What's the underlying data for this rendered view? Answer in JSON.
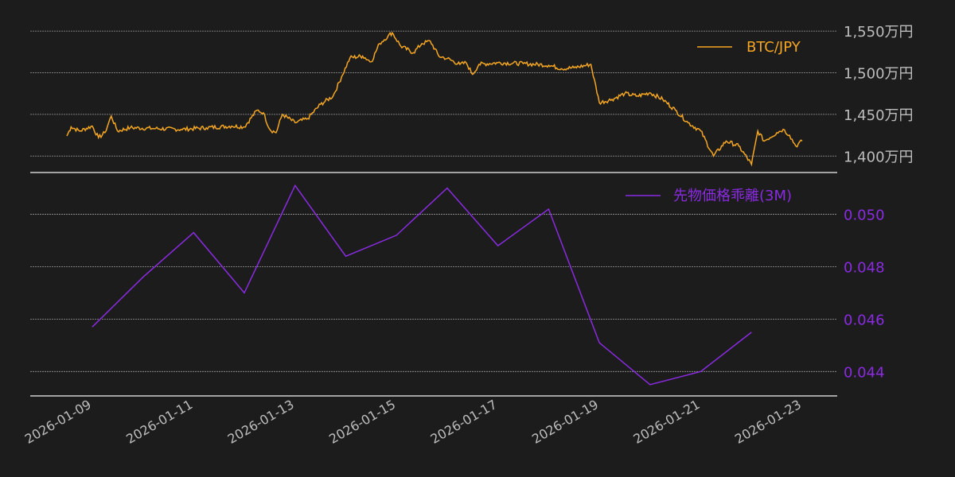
{
  "chart_data": [
    {
      "type": "line",
      "panel": "top",
      "series": [
        {
          "name": "BTC/JPY",
          "color": "#f5a623"
        }
      ],
      "x_start": "2026-01-08T12:00",
      "x_end": "2026-01-23T00:00",
      "keypoints": [
        [
          "2026-01-08T12:00",
          1424
        ],
        [
          "2026-01-08T14:00",
          1435
        ],
        [
          "2026-01-08T18:00",
          1430
        ],
        [
          "2026-01-09T00:00",
          1436
        ],
        [
          "2026-01-09T03:00",
          1422
        ],
        [
          "2026-01-09T06:00",
          1428
        ],
        [
          "2026-01-09T09:00",
          1448
        ],
        [
          "2026-01-09T12:00",
          1430
        ],
        [
          "2026-01-09T18:00",
          1434
        ],
        [
          "2026-01-10T06:00",
          1433
        ],
        [
          "2026-01-10T18:00",
          1432
        ],
        [
          "2026-01-11T06:00",
          1434
        ],
        [
          "2026-01-11T18:00",
          1436
        ],
        [
          "2026-01-12T00:00",
          1435
        ],
        [
          "2026-01-12T06:00",
          1455
        ],
        [
          "2026-01-12T09:00",
          1452
        ],
        [
          "2026-01-12T12:00",
          1432
        ],
        [
          "2026-01-12T15:00",
          1428
        ],
        [
          "2026-01-12T18:00",
          1450
        ],
        [
          "2026-01-13T00:00",
          1440
        ],
        [
          "2026-01-13T06:00",
          1445
        ],
        [
          "2026-01-13T12:00",
          1462
        ],
        [
          "2026-01-13T18:00",
          1472
        ],
        [
          "2026-01-13T22:00",
          1495
        ],
        [
          "2026-01-14T02:00",
          1518
        ],
        [
          "2026-01-14T08:00",
          1520
        ],
        [
          "2026-01-14T12:00",
          1513
        ],
        [
          "2026-01-14T16:00",
          1535
        ],
        [
          "2026-01-14T20:00",
          1544
        ],
        [
          "2026-01-14T22:00",
          1548
        ],
        [
          "2026-01-15T02:00",
          1532
        ],
        [
          "2026-01-15T08:00",
          1524
        ],
        [
          "2026-01-15T12:00",
          1535
        ],
        [
          "2026-01-15T16:00",
          1538
        ],
        [
          "2026-01-15T20:00",
          1520
        ],
        [
          "2026-01-16T00:00",
          1517
        ],
        [
          "2026-01-16T06:00",
          1510
        ],
        [
          "2026-01-16T09:00",
          1512
        ],
        [
          "2026-01-16T12:00",
          1498
        ],
        [
          "2026-01-16T15:00",
          1510
        ],
        [
          "2026-01-17T00:00",
          1512
        ],
        [
          "2026-01-17T12:00",
          1511
        ],
        [
          "2026-01-18T00:00",
          1509
        ],
        [
          "2026-01-18T06:00",
          1505
        ],
        [
          "2026-01-18T12:00",
          1506
        ],
        [
          "2026-01-18T20:00",
          1510
        ],
        [
          "2026-01-19T00:00",
          1464
        ],
        [
          "2026-01-19T06:00",
          1468
        ],
        [
          "2026-01-19T12:00",
          1475
        ],
        [
          "2026-01-19T18:00",
          1472
        ],
        [
          "2026-01-20T00:00",
          1476
        ],
        [
          "2026-01-20T06:00",
          1468
        ],
        [
          "2026-01-20T12:00",
          1455
        ],
        [
          "2026-01-20T18:00",
          1440
        ],
        [
          "2026-01-21T00:00",
          1430
        ],
        [
          "2026-01-21T06:00",
          1400
        ],
        [
          "2026-01-21T12:00",
          1418
        ],
        [
          "2026-01-21T18:00",
          1412
        ],
        [
          "2026-01-22T00:00",
          1390
        ],
        [
          "2026-01-22T03:00",
          1430
        ],
        [
          "2026-01-22T06:00",
          1418
        ],
        [
          "2026-01-22T12:00",
          1428
        ],
        [
          "2026-01-22T15:00",
          1432
        ],
        [
          "2026-01-22T18:00",
          1425
        ],
        [
          "2026-01-22T21:00",
          1412
        ],
        [
          "2026-01-23T00:00",
          1418
        ]
      ],
      "ylim": [
        1385,
        1552
      ],
      "yticks": [
        1400,
        1450,
        1500,
        1550
      ],
      "ytick_labels": [
        "1,400万円",
        "1,450万円",
        "1,500万円",
        "1,550万円"
      ],
      "legend_position": "top-right",
      "grid": true
    },
    {
      "type": "line",
      "panel": "bottom",
      "series": [
        {
          "name": "先物価格乖離(3M)",
          "color": "#8a2be2",
          "x": [
            "2026-01-09",
            "2026-01-10",
            "2026-01-11",
            "2026-01-12",
            "2026-01-13",
            "2026-01-14",
            "2026-01-15",
            "2026-01-16",
            "2026-01-17",
            "2026-01-18",
            "2026-01-19",
            "2026-01-20",
            "2026-01-21",
            "2026-01-22"
          ],
          "values": [
            0.0457,
            0.0476,
            0.0493,
            0.047,
            0.0511,
            0.0484,
            0.0492,
            0.051,
            0.0488,
            0.0502,
            0.0451,
            0.0435,
            0.044,
            0.0455
          ]
        }
      ],
      "ylim": [
        0.0431,
        0.0512
      ],
      "yticks": [
        0.044,
        0.046,
        0.048,
        0.05
      ],
      "ytick_labels": [
        "0.044",
        "0.046",
        "0.048",
        "0.050"
      ],
      "legend_position": "top-right",
      "grid": true
    }
  ],
  "x_axis": {
    "ticks": [
      "2026-01-09",
      "2026-01-11",
      "2026-01-13",
      "2026-01-15",
      "2026-01-17",
      "2026-01-19",
      "2026-01-21",
      "2026-01-23"
    ]
  },
  "colors": {
    "background": "#1c1c1c",
    "grid": "#9a9a9a",
    "axis": "#d0d0d0",
    "top_tick": "#bdbdbd"
  }
}
